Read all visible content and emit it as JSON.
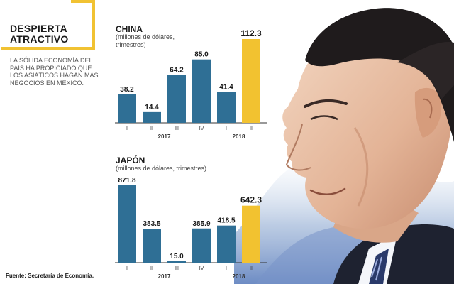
{
  "headline": {
    "line1": "DESPIERTA",
    "line2": "ATRACTIVO"
  },
  "dek": "LA SÓLIDA ECONOMÍA DEL PAÍS HA PROPICIADO QUE LOS ASIÁTICOS HAGAN MÁS NEGOCIOS EN MÉXICO.",
  "source": "Fuente: Secretaría de Economía.",
  "colors": {
    "bar": "#2f6f95",
    "bar_light": "#4a90b8",
    "highlight": "#f2c230",
    "frame": "#f1c232",
    "text": "#1a1a1a"
  },
  "chart_data": [
    {
      "type": "bar",
      "title": "CHINA",
      "subtitle": "(millones de dólares, trimestres)",
      "categories": [
        "I",
        "II",
        "III",
        "IV",
        "I",
        "II"
      ],
      "years": [
        {
          "label": "2017",
          "count": 4
        },
        {
          "label": "2018",
          "count": 2
        }
      ],
      "values": [
        38.2,
        14.4,
        64.2,
        85.0,
        41.4,
        112.3
      ],
      "labels": [
        "38.2",
        "14.4",
        "64.2",
        "85.0",
        "41.4",
        "112.3"
      ],
      "highlight_index": 5,
      "ylim": [
        0,
        112.3
      ]
    },
    {
      "type": "bar",
      "title": "JAPÓN",
      "subtitle": "(millones de dólares, trimestres)",
      "categories": [
        "I",
        "II",
        "III",
        "IV",
        "I",
        "II"
      ],
      "years": [
        {
          "label": "2017",
          "count": 4
        },
        {
          "label": "2018",
          "count": 2
        }
      ],
      "values": [
        871.8,
        383.5,
        15.0,
        385.9,
        418.5,
        642.3
      ],
      "labels": [
        "871.8",
        "383.5",
        "15.0",
        "385.9",
        "418.5",
        "642.3"
      ],
      "highlight_index": 5,
      "ylim": [
        0,
        871.8
      ]
    }
  ]
}
